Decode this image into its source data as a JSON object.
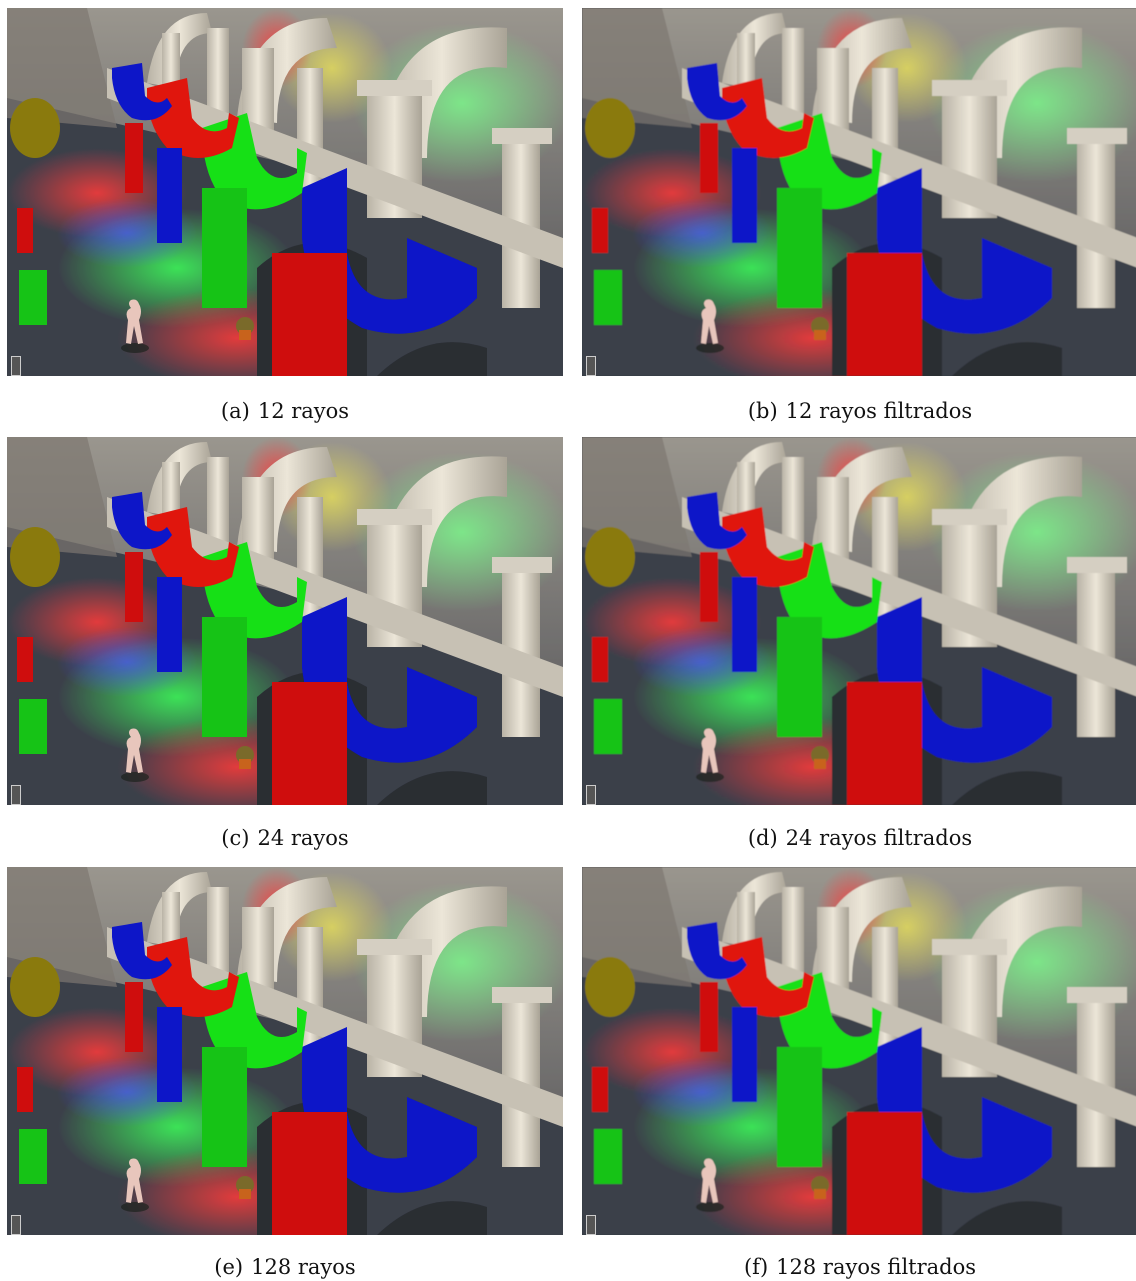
{
  "figures": [
    {
      "tag": "(a)",
      "caption": "12 rayos",
      "variant": "noisy"
    },
    {
      "tag": "(b)",
      "caption": "12 rayos filtrados",
      "variant": "smooth"
    },
    {
      "tag": "(c)",
      "caption": "24 rayos",
      "variant": "noisy"
    },
    {
      "tag": "(d)",
      "caption": "24 rayos filtrados",
      "variant": "smooth"
    },
    {
      "tag": "(e)",
      "caption": "128 rayos",
      "variant": "noisy"
    },
    {
      "tag": "(f)",
      "caption": "128 rayos filtrados",
      "variant": "smooth"
    }
  ],
  "colors": {
    "blue_cloth": "#0a14c8",
    "red_cloth": "#e0120e",
    "green_cloth": "#18e018",
    "stone": "#d8d2c4",
    "floor": "#3a3f4a",
    "red_light": "#ff3a3a",
    "green_light": "#3cff5a",
    "blue_light": "#4a5cff"
  }
}
